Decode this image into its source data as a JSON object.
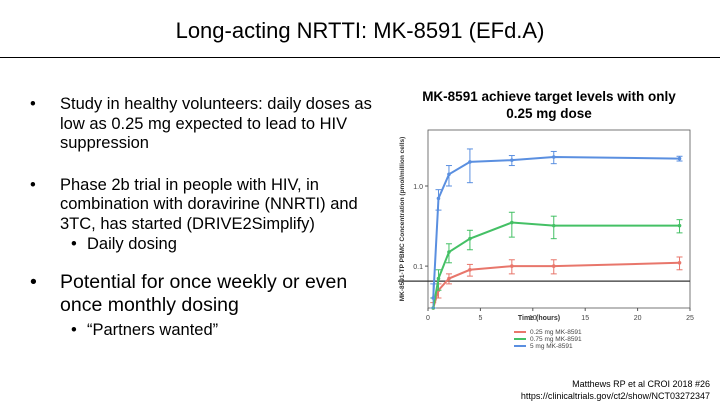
{
  "slide": {
    "title": "Long-acting NRTTI: MK-8591 (EFd.A)",
    "bullet_char": "•",
    "bullets": [
      {
        "text": "Study in healthy volunteers: daily doses as low as 0.25 mg expected to lead to HIV suppression"
      },
      {
        "text": "Phase 2b trial in people with HIV, in combination with doravirine (NNRTI) and 3TC, has started (DRIVE2Simplify)"
      },
      {
        "text": "Daily dosing"
      },
      {
        "text": "Potential for once weekly or even once monthly dosing"
      },
      {
        "text": "“Partners wanted”"
      }
    ],
    "chart_caption": "MK-8591 achieve target levels with only 0.25 mg dose",
    "references": [
      "Matthews RP et al CROI 2018 #26",
      "https://clinicaltrials.gov/ct2/show/NCT03272347"
    ]
  },
  "chart_data": {
    "type": "line",
    "title": "",
    "xlabel": "Time (hours)",
    "ylabel": "MK-8591-TP PBMC Concentration (pmol/million cells)",
    "xlim": [
      0,
      25
    ],
    "ylim_log": [
      0.03,
      5
    ],
    "x_ticks": [
      0,
      5,
      10,
      15,
      20,
      25
    ],
    "y_ticks": [
      {
        "value": 0.1,
        "label": "0.1"
      },
      {
        "value": 1,
        "label": "1.0"
      }
    ],
    "reference_line": 0.065,
    "series": [
      {
        "name": "0.25 mg MK-8591",
        "color": "#e8766b",
        "x": [
          0.5,
          1,
          2,
          4,
          8,
          12,
          24
        ],
        "y": [
          0.03,
          0.05,
          0.07,
          0.09,
          0.1,
          0.1,
          0.11
        ],
        "err": [
          0.005,
          0.01,
          0.01,
          0.015,
          0.02,
          0.02,
          0.02
        ]
      },
      {
        "name": "0.75 mg MK-8591",
        "color": "#44c065",
        "x": [
          0.5,
          1,
          2,
          4,
          8,
          12,
          24
        ],
        "y": [
          0.03,
          0.07,
          0.15,
          0.22,
          0.35,
          0.32,
          0.32
        ],
        "err": [
          0.01,
          0.02,
          0.04,
          0.06,
          0.12,
          0.1,
          0.06
        ]
      },
      {
        "name": "5 mg MK-8591",
        "color": "#5a8fe0",
        "x": [
          0.5,
          1,
          2,
          4,
          8,
          12,
          24
        ],
        "y": [
          0.04,
          0.7,
          1.4,
          2.0,
          2.1,
          2.3,
          2.2
        ],
        "err": [
          0.02,
          0.2,
          0.4,
          0.9,
          0.3,
          0.4,
          0.15
        ]
      }
    ]
  }
}
